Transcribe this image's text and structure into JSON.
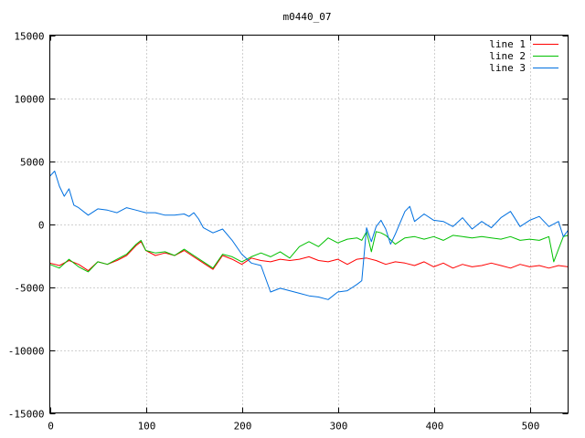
{
  "chart_data": {
    "type": "line",
    "title": "m0440_07",
    "xlabel": "",
    "ylabel": "",
    "xlim": [
      0,
      540
    ],
    "ylim": [
      -15000,
      15000
    ],
    "xticks": [
      0,
      100,
      200,
      300,
      400,
      500
    ],
    "yticks": [
      -15000,
      -10000,
      -5000,
      0,
      5000,
      10000,
      15000
    ],
    "grid": true,
    "legend": "top-right",
    "series": [
      {
        "name": "line 1",
        "color": "#ff0000",
        "points": [
          [
            0,
            -3100
          ],
          [
            10,
            -3300
          ],
          [
            20,
            -2900
          ],
          [
            30,
            -3200
          ],
          [
            40,
            -3700
          ],
          [
            50,
            -3000
          ],
          [
            60,
            -3200
          ],
          [
            70,
            -2900
          ],
          [
            80,
            -2500
          ],
          [
            90,
            -1700
          ],
          [
            95,
            -1400
          ],
          [
            100,
            -2100
          ],
          [
            110,
            -2500
          ],
          [
            120,
            -2300
          ],
          [
            130,
            -2500
          ],
          [
            140,
            -2100
          ],
          [
            150,
            -2600
          ],
          [
            160,
            -3100
          ],
          [
            170,
            -3600
          ],
          [
            180,
            -2500
          ],
          [
            190,
            -2800
          ],
          [
            200,
            -3200
          ],
          [
            210,
            -2700
          ],
          [
            220,
            -2900
          ],
          [
            230,
            -3000
          ],
          [
            240,
            -2800
          ],
          [
            250,
            -2900
          ],
          [
            260,
            -2800
          ],
          [
            270,
            -2600
          ],
          [
            280,
            -2900
          ],
          [
            290,
            -3000
          ],
          [
            300,
            -2800
          ],
          [
            310,
            -3200
          ],
          [
            320,
            -2800
          ],
          [
            330,
            -2700
          ],
          [
            340,
            -2900
          ],
          [
            350,
            -3200
          ],
          [
            360,
            -3000
          ],
          [
            370,
            -3100
          ],
          [
            380,
            -3300
          ],
          [
            390,
            -3000
          ],
          [
            400,
            -3400
          ],
          [
            410,
            -3100
          ],
          [
            420,
            -3500
          ],
          [
            430,
            -3200
          ],
          [
            440,
            -3400
          ],
          [
            450,
            -3300
          ],
          [
            460,
            -3100
          ],
          [
            470,
            -3300
          ],
          [
            480,
            -3500
          ],
          [
            490,
            -3200
          ],
          [
            500,
            -3400
          ],
          [
            510,
            -3300
          ],
          [
            520,
            -3500
          ],
          [
            530,
            -3300
          ],
          [
            540,
            -3400
          ]
        ]
      },
      {
        "name": "line 2",
        "color": "#00c000",
        "points": [
          [
            0,
            -3200
          ],
          [
            10,
            -3500
          ],
          [
            20,
            -2800
          ],
          [
            30,
            -3400
          ],
          [
            40,
            -3800
          ],
          [
            50,
            -3000
          ],
          [
            60,
            -3200
          ],
          [
            70,
            -2800
          ],
          [
            80,
            -2400
          ],
          [
            90,
            -1600
          ],
          [
            95,
            -1300
          ],
          [
            100,
            -2100
          ],
          [
            110,
            -2300
          ],
          [
            120,
            -2200
          ],
          [
            130,
            -2500
          ],
          [
            140,
            -2000
          ],
          [
            150,
            -2500
          ],
          [
            160,
            -3000
          ],
          [
            170,
            -3500
          ],
          [
            180,
            -2400
          ],
          [
            190,
            -2600
          ],
          [
            200,
            -3000
          ],
          [
            210,
            -2600
          ],
          [
            220,
            -2300
          ],
          [
            230,
            -2600
          ],
          [
            240,
            -2200
          ],
          [
            250,
            -2700
          ],
          [
            260,
            -1800
          ],
          [
            270,
            -1400
          ],
          [
            280,
            -1800
          ],
          [
            290,
            -1100
          ],
          [
            300,
            -1500
          ],
          [
            310,
            -1200
          ],
          [
            320,
            -1100
          ],
          [
            325,
            -1300
          ],
          [
            330,
            -600
          ],
          [
            335,
            -2200
          ],
          [
            340,
            -600
          ],
          [
            345,
            -700
          ],
          [
            350,
            -900
          ],
          [
            360,
            -1600
          ],
          [
            370,
            -1100
          ],
          [
            380,
            -1000
          ],
          [
            390,
            -1200
          ],
          [
            400,
            -1000
          ],
          [
            410,
            -1300
          ],
          [
            420,
            -900
          ],
          [
            430,
            -1000
          ],
          [
            440,
            -1100
          ],
          [
            450,
            -1000
          ],
          [
            460,
            -1100
          ],
          [
            470,
            -1200
          ],
          [
            480,
            -1000
          ],
          [
            490,
            -1300
          ],
          [
            500,
            -1200
          ],
          [
            510,
            -1300
          ],
          [
            520,
            -1000
          ],
          [
            525,
            -3000
          ],
          [
            530,
            -2000
          ],
          [
            535,
            -1000
          ],
          [
            540,
            -900
          ]
        ]
      },
      {
        "name": "line 3",
        "color": "#0070e0",
        "points": [
          [
            0,
            3800
          ],
          [
            5,
            4200
          ],
          [
            10,
            3000
          ],
          [
            15,
            2200
          ],
          [
            20,
            2800
          ],
          [
            25,
            1500
          ],
          [
            30,
            1300
          ],
          [
            40,
            700
          ],
          [
            50,
            1200
          ],
          [
            60,
            1100
          ],
          [
            70,
            900
          ],
          [
            80,
            1300
          ],
          [
            90,
            1100
          ],
          [
            100,
            900
          ],
          [
            110,
            900
          ],
          [
            120,
            700
          ],
          [
            130,
            700
          ],
          [
            140,
            800
          ],
          [
            145,
            600
          ],
          [
            150,
            900
          ],
          [
            155,
            400
          ],
          [
            160,
            -300
          ],
          [
            170,
            -700
          ],
          [
            180,
            -400
          ],
          [
            190,
            -1300
          ],
          [
            200,
            -2400
          ],
          [
            210,
            -3100
          ],
          [
            220,
            -3300
          ],
          [
            230,
            -5400
          ],
          [
            240,
            -5100
          ],
          [
            250,
            -5300
          ],
          [
            260,
            -5500
          ],
          [
            270,
            -5700
          ],
          [
            280,
            -5800
          ],
          [
            290,
            -6000
          ],
          [
            300,
            -5400
          ],
          [
            310,
            -5300
          ],
          [
            320,
            -4800
          ],
          [
            325,
            -4500
          ],
          [
            330,
            -300
          ],
          [
            335,
            -1400
          ],
          [
            340,
            -200
          ],
          [
            345,
            300
          ],
          [
            350,
            -400
          ],
          [
            355,
            -1600
          ],
          [
            360,
            -800
          ],
          [
            370,
            1000
          ],
          [
            375,
            1400
          ],
          [
            380,
            200
          ],
          [
            390,
            800
          ],
          [
            400,
            300
          ],
          [
            410,
            200
          ],
          [
            420,
            -200
          ],
          [
            430,
            500
          ],
          [
            440,
            -400
          ],
          [
            450,
            200
          ],
          [
            460,
            -300
          ],
          [
            470,
            500
          ],
          [
            480,
            1000
          ],
          [
            490,
            -200
          ],
          [
            500,
            300
          ],
          [
            510,
            600
          ],
          [
            520,
            -200
          ],
          [
            530,
            200
          ],
          [
            535,
            -1000
          ],
          [
            540,
            -500
          ]
        ]
      }
    ]
  }
}
